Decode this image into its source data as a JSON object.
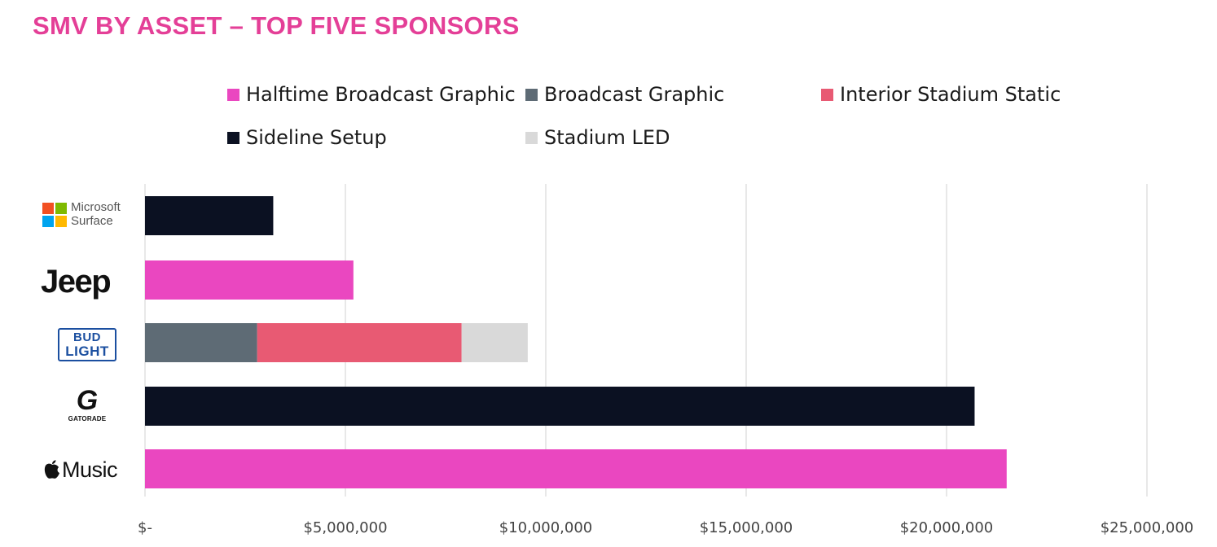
{
  "title": "SMV BY ASSET – TOP FIVE SPONSORS",
  "legend": [
    {
      "label": "Halftime Broadcast Graphic",
      "color": "#ea47c0"
    },
    {
      "label": "Broadcast Graphic",
      "color": "#5e6b75"
    },
    {
      "label": "Interior Stadium Static",
      "color": "#e85a73"
    },
    {
      "label": "Sideline Setup",
      "color": "#0b1122"
    },
    {
      "label": "Stadium LED",
      "color": "#d9d9d9"
    }
  ],
  "logos": {
    "microsoft": {
      "line1": "Microsoft",
      "line2": "Surface"
    },
    "jeep": {
      "text": "Jeep"
    },
    "budlight": {
      "line1": "BUD",
      "line2": "LIGHT"
    },
    "gatorade": {
      "mark": "G",
      "text": "GATORADE"
    },
    "apple_music": {
      "text": "Music"
    }
  },
  "chart_data": {
    "type": "bar",
    "orientation": "horizontal",
    "stacked": true,
    "categories": [
      "Microsoft Surface",
      "Jeep",
      "Bud Light",
      "Gatorade",
      "Apple Music"
    ],
    "series": [
      {
        "name": "Halftime Broadcast Graphic",
        "color": "#ea47c0",
        "values": [
          0,
          5200000,
          0,
          0,
          21500000
        ]
      },
      {
        "name": "Broadcast Graphic",
        "color": "#5e6b75",
        "values": [
          0,
          0,
          2800000,
          0,
          0
        ]
      },
      {
        "name": "Interior Stadium Static",
        "color": "#e85a73",
        "values": [
          0,
          0,
          5100000,
          0,
          0
        ]
      },
      {
        "name": "Sideline Setup",
        "color": "#0b1122",
        "values": [
          3200000,
          0,
          0,
          20700000,
          0
        ]
      },
      {
        "name": "Stadium LED",
        "color": "#d9d9d9",
        "values": [
          0,
          0,
          1650000,
          0,
          0
        ]
      }
    ],
    "xlim": [
      0,
      25000000
    ],
    "xticks": [
      0,
      5000000,
      10000000,
      15000000,
      20000000,
      25000000
    ],
    "tick_labels": [
      "$-",
      "$5,000,000",
      "$10,000,000",
      "$15,000,000",
      "$20,000,000",
      "$25,000,000"
    ],
    "grid": true,
    "legend_position": "top"
  }
}
